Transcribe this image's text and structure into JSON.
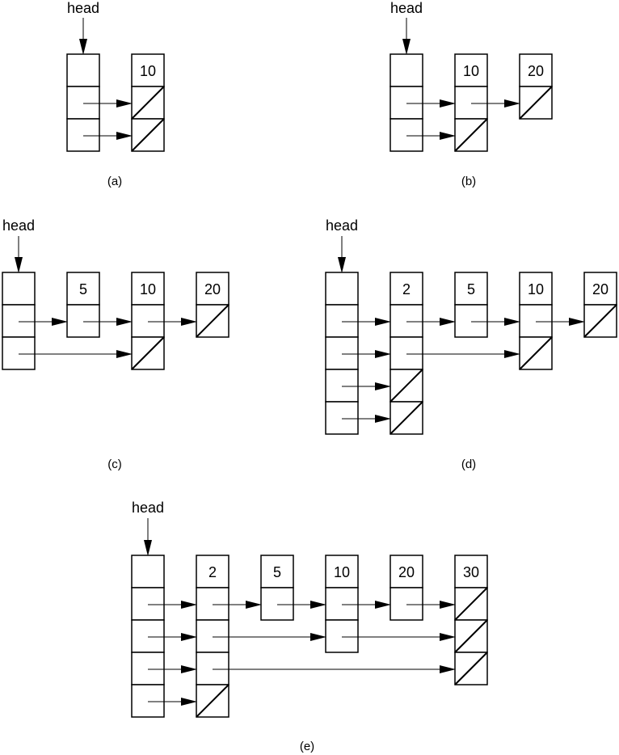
{
  "head_label": "head",
  "diagrams": [
    {
      "caption": "(a)",
      "values": [
        "10"
      ]
    },
    {
      "caption": "(b)",
      "values": [
        "10",
        "20"
      ]
    },
    {
      "caption": "(c)",
      "values": [
        "5",
        "10",
        "20"
      ]
    },
    {
      "caption": "(d)",
      "values": [
        "2",
        "5",
        "10",
        "20"
      ]
    },
    {
      "caption": "(e)",
      "values": [
        "2",
        "5",
        "10",
        "20",
        "30"
      ]
    }
  ]
}
